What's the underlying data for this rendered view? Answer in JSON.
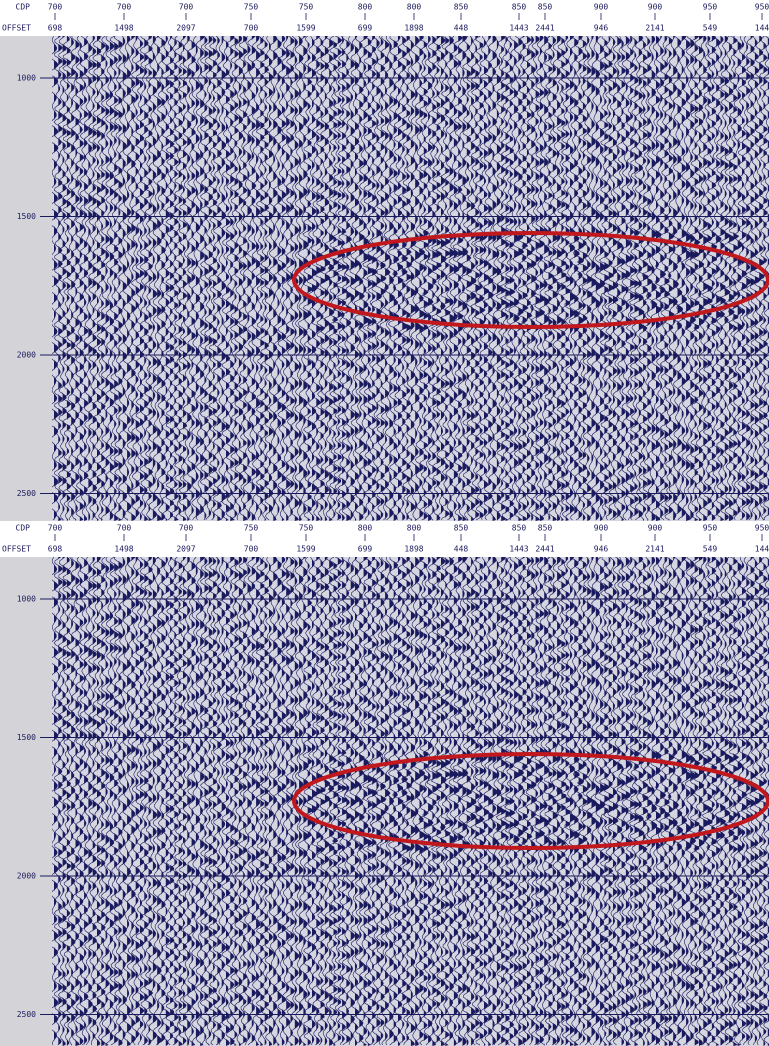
{
  "panels": [
    {
      "header": {
        "cdp_label": "CDP",
        "offset_label": "OFFSET"
      },
      "cdp": [
        "700",
        "700",
        "700",
        "750",
        "750",
        "800",
        "800",
        "850",
        "850",
        "850",
        "900",
        "900",
        "950",
        "950"
      ],
      "offset": [
        "698",
        "1498",
        "2097",
        "700",
        "1599",
        "699",
        "1898",
        "448",
        "1443",
        "2441",
        "946",
        "2141",
        "549",
        "144"
      ],
      "time_labels": [
        "1000",
        "1500",
        "2000",
        "2500"
      ]
    },
    {
      "header": {
        "cdp_label": "CDP",
        "offset_label": "OFFSET"
      },
      "cdp": [
        "700",
        "700",
        "700",
        "750",
        "750",
        "800",
        "800",
        "850",
        "850",
        "850",
        "900",
        "900",
        "950",
        "950"
      ],
      "offset": [
        "698",
        "1498",
        "2097",
        "700",
        "1599",
        "699",
        "1898",
        "448",
        "1443",
        "2441",
        "946",
        "2141",
        "549",
        "144"
      ],
      "time_labels": [
        "1000",
        "1500",
        "2000",
        "2500"
      ]
    }
  ]
}
